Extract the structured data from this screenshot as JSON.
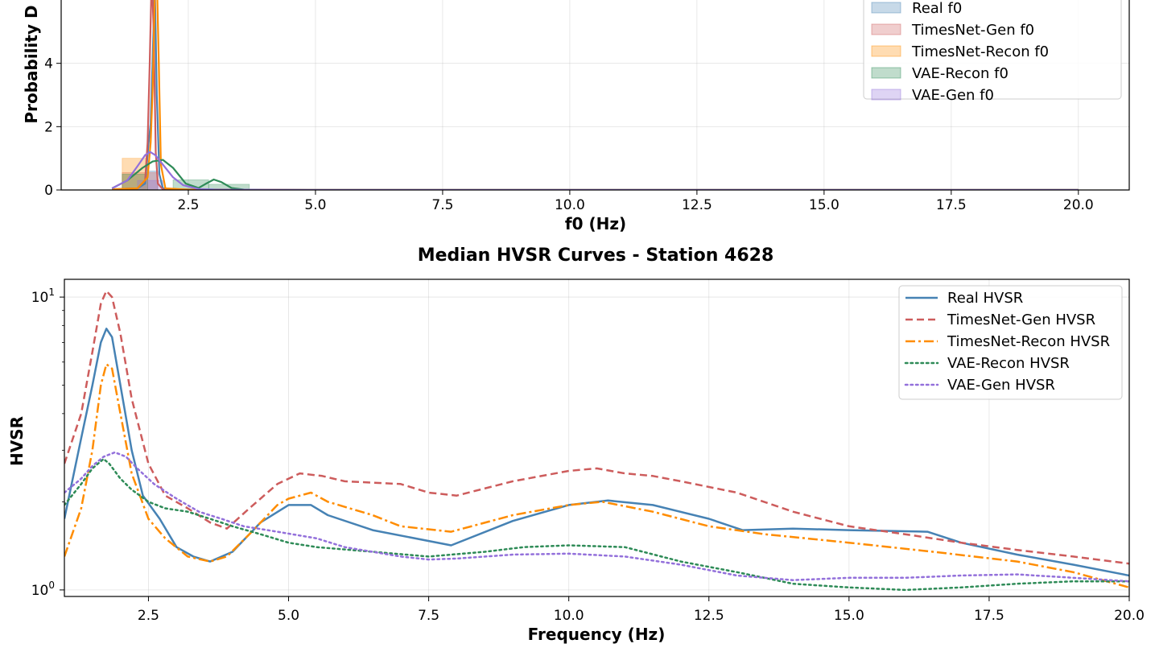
{
  "chart_data": [
    {
      "type": "histogram",
      "title": "",
      "xlabel": "f0 (Hz)",
      "ylabel": "Probability D",
      "xlim": [
        0.0,
        21.0
      ],
      "ylim": [
        0,
        6
      ],
      "xticks": [
        "2.5",
        "5.0",
        "7.5",
        "10.0",
        "12.5",
        "15.0",
        "17.5",
        "20.0"
      ],
      "yticks": [
        "0",
        "2",
        "4"
      ],
      "grid": true,
      "legend_position": "top-right",
      "legend": [
        "Real f0",
        "TimesNet-Gen f0",
        "TimesNet-Recon f0",
        "VAE-Recon f0",
        "VAE-Gen f0"
      ],
      "series": [
        {
          "name": "Real f0",
          "color": "#4682b4",
          "bars": [
            {
              "x0": 1.7,
              "x1": 1.9,
              "y": 0.6
            }
          ],
          "kde_x": [
            1.0,
            1.5,
            1.65,
            1.72,
            1.76,
            1.8,
            1.84,
            1.88,
            1.93,
            2.0,
            2.3,
            5,
            10,
            15,
            20
          ],
          "kde_y": [
            0.02,
            0.05,
            0.2,
            1.5,
            2.1,
            4.2,
            6.5,
            3.0,
            0.5,
            0.05,
            0.02,
            0,
            0,
            0,
            0
          ]
        },
        {
          "name": "TimesNet-Gen f0",
          "color": "#cd5c5c",
          "bars": [
            {
              "x0": 1.2,
              "x1": 1.9,
              "y": 0.55
            }
          ],
          "kde_x": [
            1.0,
            1.5,
            1.65,
            1.7,
            1.74,
            1.78,
            1.82,
            1.86,
            1.9,
            2.0,
            2.5,
            5,
            10,
            15,
            20
          ],
          "kde_y": [
            0.02,
            0.05,
            0.3,
            1.5,
            4.0,
            6.8,
            5.0,
            1.2,
            0.2,
            0.02,
            0.01,
            0,
            0,
            0,
            0
          ]
        },
        {
          "name": "TimesNet-Recon f0",
          "color": "#ff8c00",
          "bars": [
            {
              "x0": 1.2,
              "x1": 1.7,
              "y": 1.0
            }
          ],
          "kde_x": [
            1.0,
            1.5,
            1.7,
            1.76,
            1.8,
            1.84,
            1.88,
            1.92,
            1.96,
            2.05,
            2.5,
            5,
            10,
            15,
            20
          ],
          "kde_y": [
            0.02,
            0.05,
            0.4,
            1.5,
            3.2,
            6.0,
            6.8,
            4.0,
            0.8,
            0.05,
            0.01,
            0,
            0,
            0,
            0
          ]
        },
        {
          "name": "VAE-Recon f0",
          "color": "#2e8b57",
          "bars": [
            {
              "x0": 1.2,
              "x1": 1.7,
              "y": 0.5
            },
            {
              "x0": 2.2,
              "x1": 2.9,
              "y": 0.32
            },
            {
              "x0": 2.9,
              "x1": 3.7,
              "y": 0.18
            }
          ],
          "kde_x": [
            1.0,
            1.3,
            1.6,
            1.8,
            2.0,
            2.2,
            2.45,
            2.7,
            2.85,
            3.0,
            3.15,
            3.35,
            3.6,
            4.0,
            5,
            10,
            15,
            20
          ],
          "kde_y": [
            0.05,
            0.3,
            0.7,
            0.9,
            0.95,
            0.7,
            0.2,
            0.06,
            0.2,
            0.33,
            0.25,
            0.06,
            0.01,
            0,
            0,
            0,
            0,
            0
          ]
        },
        {
          "name": "VAE-Gen f0",
          "color": "#9370db",
          "bars": [
            {
              "x0": 1.5,
              "x1": 2.0,
              "y": 0.3
            }
          ],
          "kde_x": [
            1.0,
            1.3,
            1.5,
            1.65,
            1.75,
            1.85,
            2.0,
            2.2,
            2.4,
            2.7,
            3.0,
            5,
            10,
            15,
            20
          ],
          "kde_y": [
            0.05,
            0.3,
            0.75,
            1.1,
            1.2,
            1.1,
            0.8,
            0.4,
            0.15,
            0.03,
            0.01,
            0,
            0,
            0,
            0
          ]
        }
      ]
    },
    {
      "type": "line",
      "title": "Median HVSR Curves - Station 4628",
      "xlabel": "Frequency (Hz)",
      "ylabel": "HVSR",
      "xlim": [
        1.0,
        20.0
      ],
      "ylim": [
        0.95,
        11.5
      ],
      "yscale": "log",
      "xticks": [
        "2.5",
        "5.0",
        "7.5",
        "10.0",
        "12.5",
        "15.0",
        "17.5",
        "20.0"
      ],
      "yticks": [
        {
          "value": 1,
          "base": "10",
          "exp": "0"
        },
        {
          "value": 10,
          "base": "10",
          "exp": "1"
        }
      ],
      "grid": true,
      "legend_position": "top-right",
      "series": [
        {
          "name": "Real HVSR",
          "color": "#4682b4",
          "dash": "solid",
          "x": [
            1,
            1.3,
            1.5,
            1.65,
            1.75,
            1.85,
            2.0,
            2.2,
            2.4,
            2.7,
            3.0,
            3.3,
            3.6,
            4.0,
            4.5,
            5.0,
            5.4,
            5.7,
            6.5,
            7.9,
            9.0,
            10.0,
            10.7,
            11.5,
            12.5,
            13.1,
            14.0,
            15.0,
            16.4,
            17.0,
            18.0,
            19.0,
            20.0
          ],
          "y": [
            1.75,
            3.3,
            5.0,
            7.0,
            7.8,
            7.3,
            5.0,
            3.0,
            2.1,
            1.75,
            1.4,
            1.3,
            1.25,
            1.35,
            1.7,
            1.95,
            1.95,
            1.8,
            1.6,
            1.42,
            1.72,
            1.95,
            2.02,
            1.95,
            1.75,
            1.6,
            1.62,
            1.6,
            1.58,
            1.45,
            1.32,
            1.22,
            1.12
          ]
        },
        {
          "name": "TimesNet-Gen HVSR",
          "color": "#cd5c5c",
          "dash": "dashed",
          "x": [
            1,
            1.3,
            1.5,
            1.65,
            1.75,
            1.85,
            2.0,
            2.2,
            2.5,
            2.8,
            3.2,
            3.6,
            3.9,
            4.3,
            4.8,
            5.2,
            5.6,
            6.0,
            7.0,
            7.5,
            8.0,
            9.0,
            10.0,
            10.5,
            11.0,
            11.5,
            12.0,
            13.0,
            14.0,
            15.0,
            16.0,
            17.0,
            18.0,
            19.0,
            20.0
          ],
          "y": [
            2.7,
            4.0,
            6.5,
            9.5,
            10.5,
            10.0,
            7.5,
            4.5,
            2.7,
            2.1,
            1.9,
            1.7,
            1.62,
            1.9,
            2.3,
            2.5,
            2.45,
            2.35,
            2.3,
            2.15,
            2.1,
            2.35,
            2.55,
            2.6,
            2.5,
            2.45,
            2.35,
            2.15,
            1.85,
            1.65,
            1.55,
            1.45,
            1.37,
            1.3,
            1.23
          ]
        },
        {
          "name": "TimesNet-Recon HVSR",
          "color": "#ff8c00",
          "dash": "dashdot",
          "x": [
            1,
            1.3,
            1.5,
            1.65,
            1.75,
            1.85,
            2.0,
            2.2,
            2.5,
            2.8,
            3.2,
            3.6,
            3.9,
            4.3,
            4.8,
            5.0,
            5.4,
            5.7,
            6.5,
            7.0,
            7.9,
            9.0,
            10.0,
            10.6,
            11.5,
            12.5,
            13.5,
            15.0,
            16.5,
            18.0,
            19.0,
            20.0
          ],
          "y": [
            1.3,
            1.9,
            3.0,
            5.0,
            5.9,
            5.7,
            4.0,
            2.5,
            1.75,
            1.5,
            1.3,
            1.25,
            1.3,
            1.55,
            1.95,
            2.05,
            2.15,
            2.0,
            1.8,
            1.65,
            1.58,
            1.8,
            1.95,
            2.0,
            1.85,
            1.65,
            1.55,
            1.45,
            1.35,
            1.25,
            1.15,
            1.02
          ]
        },
        {
          "name": "VAE-Recon HVSR",
          "color": "#2e8b57",
          "dash": "dotted",
          "x": [
            1,
            1.3,
            1.5,
            1.7,
            1.8,
            2.0,
            2.2,
            2.5,
            2.8,
            3.2,
            3.6,
            4.0,
            4.5,
            5.0,
            5.5,
            6.5,
            7.5,
            8.5,
            9.2,
            10.0,
            11.0,
            12.0,
            13.0,
            14.0,
            15.0,
            16.0,
            17.0,
            18.0,
            19.0,
            20.0
          ],
          "y": [
            1.95,
            2.3,
            2.6,
            2.8,
            2.7,
            2.4,
            2.2,
            2.0,
            1.9,
            1.85,
            1.75,
            1.65,
            1.55,
            1.45,
            1.4,
            1.35,
            1.3,
            1.35,
            1.4,
            1.42,
            1.4,
            1.25,
            1.15,
            1.05,
            1.02,
            1.0,
            1.02,
            1.05,
            1.07,
            1.07
          ]
        },
        {
          "name": "VAE-Gen HVSR",
          "color": "#9370db",
          "dash": "dotted",
          "x": [
            1,
            1.3,
            1.5,
            1.7,
            1.9,
            2.1,
            2.3,
            2.6,
            3.0,
            3.4,
            3.8,
            4.2,
            4.8,
            5.5,
            6.0,
            7.0,
            7.5,
            8.0,
            9.0,
            10.0,
            11.0,
            12.0,
            13.0,
            14.0,
            15.0,
            16.0,
            17.0,
            18.0,
            19.0,
            20.0
          ],
          "y": [
            2.15,
            2.4,
            2.65,
            2.85,
            2.95,
            2.85,
            2.6,
            2.3,
            2.05,
            1.85,
            1.75,
            1.65,
            1.58,
            1.5,
            1.4,
            1.3,
            1.27,
            1.28,
            1.32,
            1.33,
            1.3,
            1.22,
            1.12,
            1.08,
            1.1,
            1.1,
            1.12,
            1.13,
            1.1,
            1.07
          ]
        }
      ]
    }
  ]
}
